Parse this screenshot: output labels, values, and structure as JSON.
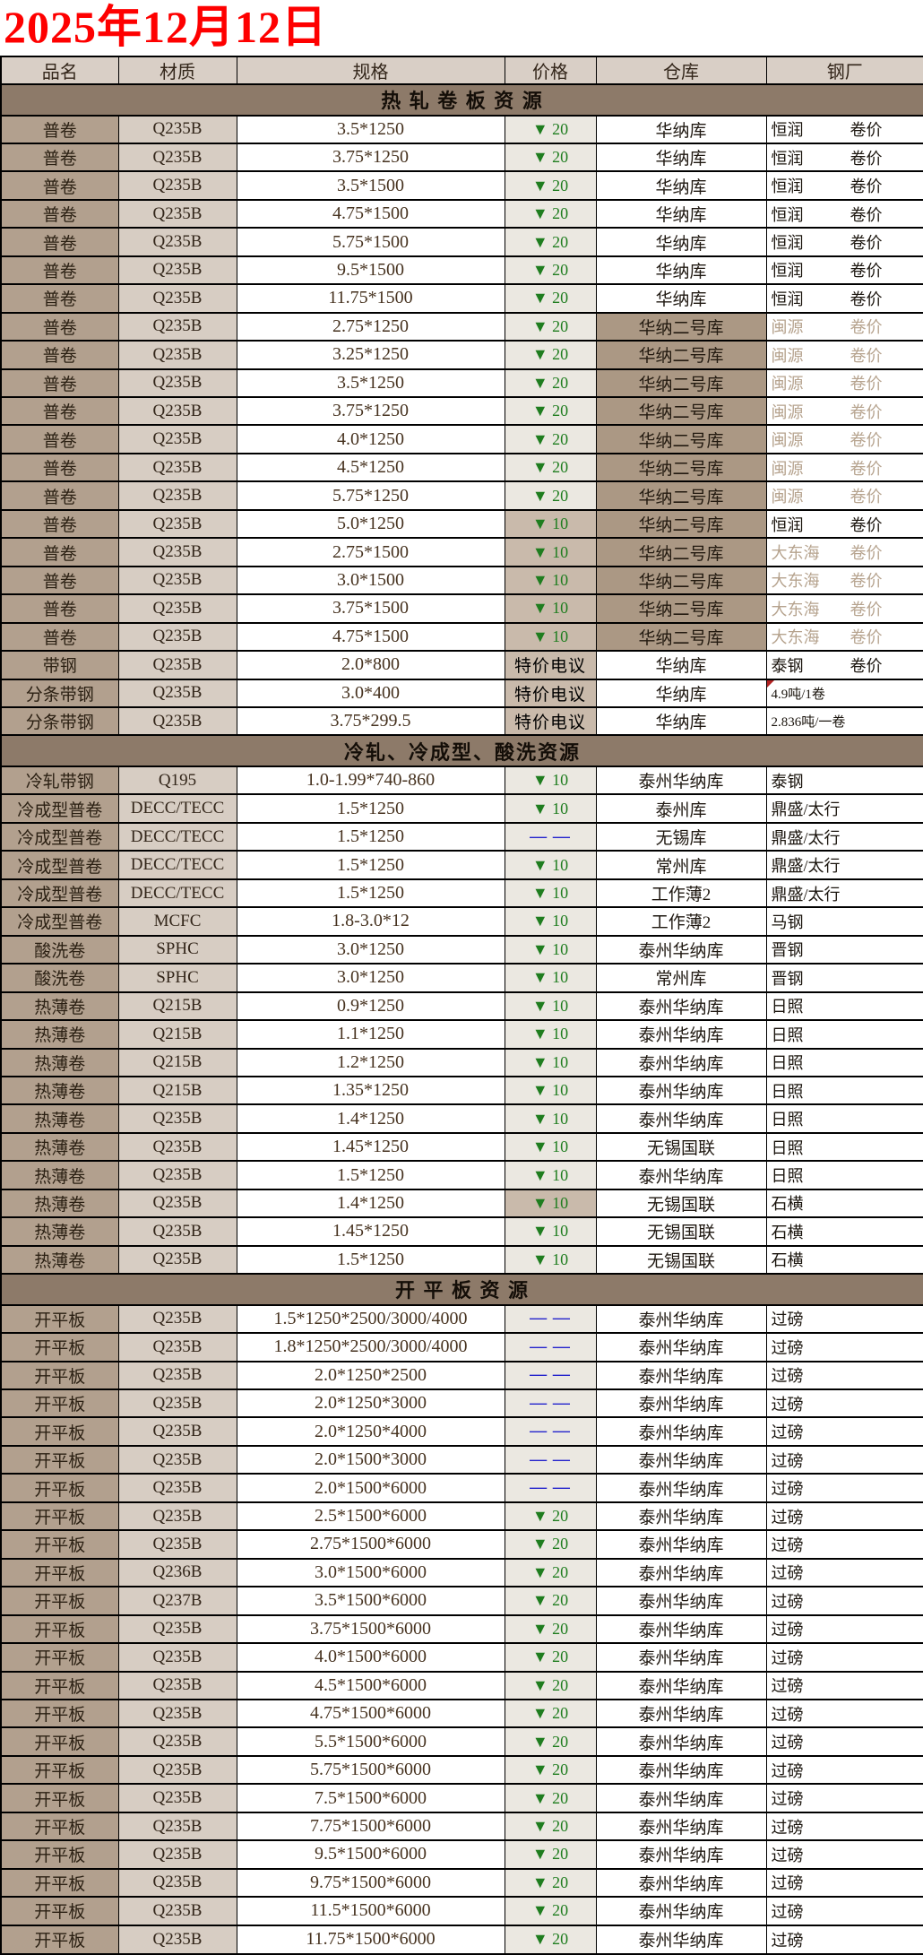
{
  "title": "2025年12月12日",
  "columns": [
    "品名",
    "材质",
    "规格",
    "价格",
    "仓库",
    "钢厂"
  ],
  "colors": {
    "title_red": "#fe0000",
    "section_bg": "#8d7a69",
    "header_bg": "#d9cfc6",
    "name_col_bg": "#b2a08e",
    "grade_col_bg": "#d7cdc3",
    "price_bg_light": "#ebe8e1",
    "price_bg_tan": "#c9baab",
    "warehouse_bg_tan": "#ab9884",
    "price_down_green": "#1f7d1f",
    "price_dash_blue": "#2323cc",
    "muted_mill_text": "#b6a38e"
  },
  "sections": [
    {
      "label": "热 轧 卷 板 资 源",
      "rows": [
        {
          "n": "普卷",
          "g": "Q235B",
          "s": "3.5*1250",
          "p": "▼ 20",
          "pt": "down",
          "w": "华纳库",
          "mill": "恒润",
          "rk": "卷价"
        },
        {
          "n": "普卷",
          "g": "Q235B",
          "s": "3.75*1250",
          "p": "▼ 20",
          "pt": "down",
          "w": "华纳库",
          "mill": "恒润",
          "rk": "卷价"
        },
        {
          "n": "普卷",
          "g": "Q235B",
          "s": "3.5*1500",
          "p": "▼ 20",
          "pt": "down",
          "w": "华纳库",
          "mill": "恒润",
          "rk": "卷价"
        },
        {
          "n": "普卷",
          "g": "Q235B",
          "s": "4.75*1500",
          "p": "▼ 20",
          "pt": "down",
          "w": "华纳库",
          "mill": "恒润",
          "rk": "卷价"
        },
        {
          "n": "普卷",
          "g": "Q235B",
          "s": "5.75*1500",
          "p": "▼ 20",
          "pt": "down",
          "w": "华纳库",
          "mill": "恒润",
          "rk": "卷价"
        },
        {
          "n": "普卷",
          "g": "Q235B",
          "s": "9.5*1500",
          "p": "▼ 20",
          "pt": "down",
          "w": "华纳库",
          "mill": "恒润",
          "rk": "卷价"
        },
        {
          "n": "普卷",
          "g": "Q235B",
          "s": "11.75*1500",
          "p": "▼ 20",
          "pt": "down",
          "w": "华纳库",
          "mill": "恒润",
          "rk": "卷价"
        },
        {
          "n": "普卷",
          "g": "Q235B",
          "s": "2.75*1250",
          "p": "▼ 20",
          "pt": "down",
          "w": "华纳二号库",
          "wbg": "tan",
          "mill": "闽源",
          "rk": "卷价",
          "mut": true
        },
        {
          "n": "普卷",
          "g": "Q235B",
          "s": "3.25*1250",
          "p": "▼ 20",
          "pt": "down",
          "w": "华纳二号库",
          "wbg": "tan",
          "mill": "闽源",
          "rk": "卷价",
          "mut": true
        },
        {
          "n": "普卷",
          "g": "Q235B",
          "s": "3.5*1250",
          "p": "▼ 20",
          "pt": "down",
          "w": "华纳二号库",
          "wbg": "tan",
          "mill": "闽源",
          "rk": "卷价",
          "mut": true
        },
        {
          "n": "普卷",
          "g": "Q235B",
          "s": "3.75*1250",
          "p": "▼ 20",
          "pt": "down",
          "w": "华纳二号库",
          "wbg": "tan",
          "mill": "闽源",
          "rk": "卷价",
          "mut": true
        },
        {
          "n": "普卷",
          "g": "Q235B",
          "s": "4.0*1250",
          "p": "▼ 20",
          "pt": "down",
          "w": "华纳二号库",
          "wbg": "tan",
          "mill": "闽源",
          "rk": "卷价",
          "mut": true
        },
        {
          "n": "普卷",
          "g": "Q235B",
          "s": "4.5*1250",
          "p": "▼ 20",
          "pt": "down",
          "w": "华纳二号库",
          "wbg": "tan",
          "mill": "闽源",
          "rk": "卷价",
          "mut": true
        },
        {
          "n": "普卷",
          "g": "Q235B",
          "s": "5.75*1250",
          "p": "▼ 20",
          "pt": "down",
          "w": "华纳二号库",
          "wbg": "tan",
          "mill": "闽源",
          "rk": "卷价",
          "mut": true
        },
        {
          "n": "普卷",
          "g": "Q235B",
          "s": "5.0*1250",
          "p": "▼ 10",
          "pt": "down",
          "pbg": "tan",
          "w": "华纳二号库",
          "wbg": "tan",
          "mill": "恒润",
          "rk": "卷价"
        },
        {
          "n": "普卷",
          "g": "Q235B",
          "s": "2.75*1500",
          "p": "▼ 10",
          "pt": "down",
          "pbg": "tan",
          "w": "华纳二号库",
          "wbg": "tan",
          "mill": "大东海",
          "rk": "卷价",
          "mut": true
        },
        {
          "n": "普卷",
          "g": "Q235B",
          "s": "3.0*1500",
          "p": "▼ 10",
          "pt": "down",
          "pbg": "tan",
          "w": "华纳二号库",
          "wbg": "tan",
          "mill": "大东海",
          "rk": "卷价",
          "mut": true
        },
        {
          "n": "普卷",
          "g": "Q235B",
          "s": "3.75*1500",
          "p": "▼ 10",
          "pt": "down",
          "pbg": "tan",
          "w": "华纳二号库",
          "wbg": "tan",
          "mill": "大东海",
          "rk": "卷价",
          "mut": true
        },
        {
          "n": "普卷",
          "g": "Q235B",
          "s": "4.75*1500",
          "p": "▼ 10",
          "pt": "down",
          "pbg": "tan",
          "w": "华纳二号库",
          "wbg": "tan",
          "mill": "大东海",
          "rk": "卷价",
          "mut": true
        },
        {
          "n": "带钢",
          "g": "Q235B",
          "s": "2.0*800",
          "p": "特价电议",
          "pt": "special",
          "w": "华纳库",
          "mill": "泰钢",
          "rk": "卷价"
        },
        {
          "n": "分条带钢",
          "g": "Q235B",
          "s": "3.0*400",
          "p": "特价电议",
          "pt": "special",
          "w": "华纳库",
          "mill": "4.9吨/1卷",
          "sm": true,
          "mk": true
        },
        {
          "n": "分条带钢",
          "g": "Q235B",
          "s": "3.75*299.5",
          "p": "特价电议",
          "pt": "special",
          "w": "华纳库",
          "mill": "2.836吨/一卷",
          "sm": true
        }
      ]
    },
    {
      "label": "冷轧、冷成型、酸洗资源",
      "rows": [
        {
          "n": "冷轧带钢",
          "g": "Q195",
          "s": "1.0-1.99*740-860",
          "p": "▼ 10",
          "pt": "down",
          "w": "泰州华纳库",
          "mill": "泰钢"
        },
        {
          "n": "冷成型普卷",
          "g": "DECC/TECC",
          "s": "1.5*1250",
          "p": "▼ 10",
          "pt": "down",
          "w": "泰州库",
          "mill": "鼎盛/太行"
        },
        {
          "n": "冷成型普卷",
          "g": "DECC/TECC",
          "s": "1.5*1250",
          "p": "— —",
          "pt": "dash",
          "w": "无锡库",
          "mill": "鼎盛/太行"
        },
        {
          "n": "冷成型普卷",
          "g": "DECC/TECC",
          "s": "1.5*1250",
          "p": "▼ 10",
          "pt": "down",
          "w": "常州库",
          "mill": "鼎盛/太行"
        },
        {
          "n": "冷成型普卷",
          "g": "DECC/TECC",
          "s": "1.5*1250",
          "p": "▼ 10",
          "pt": "down",
          "w": "工作薄2",
          "mill": "鼎盛/太行"
        },
        {
          "n": "冷成型普卷",
          "g": "MCFC",
          "s": "1.8-3.0*12",
          "p": "▼ 10",
          "pt": "down",
          "w": "工作薄2",
          "mill": "马钢"
        },
        {
          "n": "酸洗卷",
          "g": "SPHC",
          "s": "3.0*1250",
          "p": "▼ 10",
          "pt": "down",
          "w": "泰州华纳库",
          "mill": "晋钢"
        },
        {
          "n": "酸洗卷",
          "g": "SPHC",
          "s": "3.0*1250",
          "p": "▼ 10",
          "pt": "down",
          "w": "常州库",
          "mill": "晋钢"
        },
        {
          "n": "热薄卷",
          "g": "Q215B",
          "s": "0.9*1250",
          "p": "▼ 10",
          "pt": "down",
          "w": "泰州华纳库",
          "mill": "日照"
        },
        {
          "n": "热薄卷",
          "g": "Q215B",
          "s": "1.1*1250",
          "p": "▼ 10",
          "pt": "down",
          "w": "泰州华纳库",
          "mill": "日照"
        },
        {
          "n": "热薄卷",
          "g": "Q215B",
          "s": "1.2*1250",
          "p": "▼ 10",
          "pt": "down",
          "w": "泰州华纳库",
          "mill": "日照"
        },
        {
          "n": "热薄卷",
          "g": "Q215B",
          "s": "1.35*1250",
          "p": "▼ 10",
          "pt": "down",
          "w": "泰州华纳库",
          "mill": "日照"
        },
        {
          "n": "热薄卷",
          "g": "Q235B",
          "s": "1.4*1250",
          "p": "▼ 10",
          "pt": "down",
          "w": "泰州华纳库",
          "mill": "日照"
        },
        {
          "n": "热薄卷",
          "g": "Q235B",
          "s": "1.45*1250",
          "p": "▼ 10",
          "pt": "down",
          "w": "无锡国联",
          "mill": "日照"
        },
        {
          "n": "热薄卷",
          "g": "Q235B",
          "s": "1.5*1250",
          "p": "▼ 10",
          "pt": "down",
          "w": "泰州华纳库",
          "mill": "日照"
        },
        {
          "n": "热薄卷",
          "g": "Q235B",
          "s": "1.4*1250",
          "p": "▼ 10",
          "pt": "down",
          "pbg": "tan",
          "w": "无锡国联",
          "mill": "石横"
        },
        {
          "n": "热薄卷",
          "g": "Q235B",
          "s": "1.45*1250",
          "p": "▼ 10",
          "pt": "down",
          "w": "无锡国联",
          "mill": "石横"
        },
        {
          "n": "热薄卷",
          "g": "Q235B",
          "s": "1.5*1250",
          "p": "▼ 10",
          "pt": "down",
          "w": "无锡国联",
          "mill": "石横"
        }
      ]
    },
    {
      "label": "开 平 板 资 源",
      "rows": [
        {
          "n": "开平板",
          "g": "Q235B",
          "s": "1.5*1250*2500/3000/4000",
          "p": "— —",
          "pt": "dash",
          "w": "泰州华纳库",
          "mill": "过磅"
        },
        {
          "n": "开平板",
          "g": "Q235B",
          "s": "1.8*1250*2500/3000/4000",
          "p": "— —",
          "pt": "dash",
          "w": "泰州华纳库",
          "mill": "过磅"
        },
        {
          "n": "开平板",
          "g": "Q235B",
          "s": "2.0*1250*2500",
          "p": "— —",
          "pt": "dash",
          "w": "泰州华纳库",
          "mill": "过磅"
        },
        {
          "n": "开平板",
          "g": "Q235B",
          "s": "2.0*1250*3000",
          "p": "— —",
          "pt": "dash",
          "w": "泰州华纳库",
          "mill": "过磅"
        },
        {
          "n": "开平板",
          "g": "Q235B",
          "s": "2.0*1250*4000",
          "p": "— —",
          "pt": "dash",
          "w": "泰州华纳库",
          "mill": "过磅"
        },
        {
          "n": "开平板",
          "g": "Q235B",
          "s": "2.0*1500*3000",
          "p": "— —",
          "pt": "dash",
          "w": "泰州华纳库",
          "mill": "过磅"
        },
        {
          "n": "开平板",
          "g": "Q235B",
          "s": "2.0*1500*6000",
          "p": "— —",
          "pt": "dash",
          "w": "泰州华纳库",
          "mill": "过磅"
        },
        {
          "n": "开平板",
          "g": "Q235B",
          "s": "2.5*1500*6000",
          "p": "▼ 20",
          "pt": "down",
          "w": "泰州华纳库",
          "mill": "过磅"
        },
        {
          "n": "开平板",
          "g": "Q235B",
          "s": "2.75*1500*6000",
          "p": "▼ 20",
          "pt": "down",
          "w": "泰州华纳库",
          "mill": "过磅"
        },
        {
          "n": "开平板",
          "g": "Q236B",
          "s": "3.0*1500*6000",
          "p": "▼ 20",
          "pt": "down",
          "w": "泰州华纳库",
          "mill": "过磅"
        },
        {
          "n": "开平板",
          "g": "Q237B",
          "s": "3.5*1500*6000",
          "p": "▼ 20",
          "pt": "down",
          "w": "泰州华纳库",
          "mill": "过磅"
        },
        {
          "n": "开平板",
          "g": "Q235B",
          "s": "3.75*1500*6000",
          "p": "▼ 20",
          "pt": "down",
          "w": "泰州华纳库",
          "mill": "过磅"
        },
        {
          "n": "开平板",
          "g": "Q235B",
          "s": "4.0*1500*6000",
          "p": "▼ 20",
          "pt": "down",
          "w": "泰州华纳库",
          "mill": "过磅"
        },
        {
          "n": "开平板",
          "g": "Q235B",
          "s": "4.5*1500*6000",
          "p": "▼ 20",
          "pt": "down",
          "w": "泰州华纳库",
          "mill": "过磅"
        },
        {
          "n": "开平板",
          "g": "Q235B",
          "s": "4.75*1500*6000",
          "p": "▼ 20",
          "pt": "down",
          "w": "泰州华纳库",
          "mill": "过磅"
        },
        {
          "n": "开平板",
          "g": "Q235B",
          "s": "5.5*1500*6000",
          "p": "▼ 20",
          "pt": "down",
          "w": "泰州华纳库",
          "mill": "过磅"
        },
        {
          "n": "开平板",
          "g": "Q235B",
          "s": "5.75*1500*6000",
          "p": "▼ 20",
          "pt": "down",
          "w": "泰州华纳库",
          "mill": "过磅"
        },
        {
          "n": "开平板",
          "g": "Q235B",
          "s": "7.5*1500*6000",
          "p": "▼ 20",
          "pt": "down",
          "w": "泰州华纳库",
          "mill": "过磅"
        },
        {
          "n": "开平板",
          "g": "Q235B",
          "s": "7.75*1500*6000",
          "p": "▼ 20",
          "pt": "down",
          "w": "泰州华纳库",
          "mill": "过磅"
        },
        {
          "n": "开平板",
          "g": "Q235B",
          "s": "9.5*1500*6000",
          "p": "▼ 20",
          "pt": "down",
          "w": "泰州华纳库",
          "mill": "过磅"
        },
        {
          "n": "开平板",
          "g": "Q235B",
          "s": "9.75*1500*6000",
          "p": "▼ 20",
          "pt": "down",
          "w": "泰州华纳库",
          "mill": "过磅"
        },
        {
          "n": "开平板",
          "g": "Q235B",
          "s": "11.5*1500*6000",
          "p": "▼ 20",
          "pt": "down",
          "w": "泰州华纳库",
          "mill": "过磅"
        },
        {
          "n": "开平板",
          "g": "Q235B",
          "s": "11.75*1500*6000",
          "p": "▼ 20",
          "pt": "down",
          "w": "泰州华纳库",
          "mill": "过磅"
        }
      ]
    }
  ]
}
